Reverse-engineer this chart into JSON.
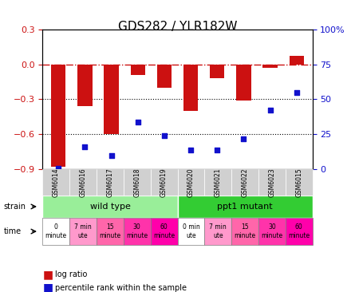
{
  "title": "GDS282 / YLR182W",
  "samples": [
    "GSM6014",
    "GSM6016",
    "GSM6017",
    "GSM6018",
    "GSM6019",
    "GSM6020",
    "GSM6021",
    "GSM6022",
    "GSM6023",
    "GSM6015"
  ],
  "log_ratio": [
    -0.88,
    -0.36,
    -0.6,
    -0.09,
    -0.2,
    -0.4,
    -0.12,
    -0.31,
    -0.03,
    0.07
  ],
  "percentile_rank": [
    0.5,
    16,
    10,
    34,
    24,
    14,
    14,
    22,
    42,
    55
  ],
  "ylim_left": [
    -0.9,
    0.3
  ],
  "ylim_right": [
    0,
    100
  ],
  "yticks_left": [
    -0.9,
    -0.6,
    -0.3,
    0.0,
    0.3
  ],
  "yticks_right": [
    0,
    25,
    50,
    75,
    100
  ],
  "ytick_labels_right": [
    "0",
    "25",
    "50",
    "75",
    "100%"
  ],
  "bar_color": "#CC1111",
  "dot_color": "#1111CC",
  "hline_y": 0.0,
  "dotted_lines": [
    -0.3,
    -0.6
  ],
  "strain_row": {
    "wild_type_label": "wild type",
    "ppt1_label": "ppt1 mutant",
    "wild_type_color": "#99EE99",
    "ppt1_color": "#33CC33",
    "wild_type_indices": [
      0,
      4
    ],
    "ppt1_indices": [
      5,
      9
    ]
  },
  "time_labels": [
    "0\nminute",
    "7 min\nute",
    "15\nminute",
    "30\nminute",
    "60\nminute",
    "0 min\nute",
    "7 min\nute",
    "15\nminute",
    "30\nminute",
    "60\nminute"
  ],
  "time_colors": [
    "#FFFFFF",
    "#FF99CC",
    "#FF66AA",
    "#FF33AA",
    "#FF00AA",
    "#FFFFFF",
    "#FF99CC",
    "#FF66AA",
    "#FF33AA",
    "#FF00AA"
  ],
  "legend_log_ratio_color": "#CC1111",
  "legend_percentile_color": "#1111CC",
  "background_color": "#FFFFFF"
}
